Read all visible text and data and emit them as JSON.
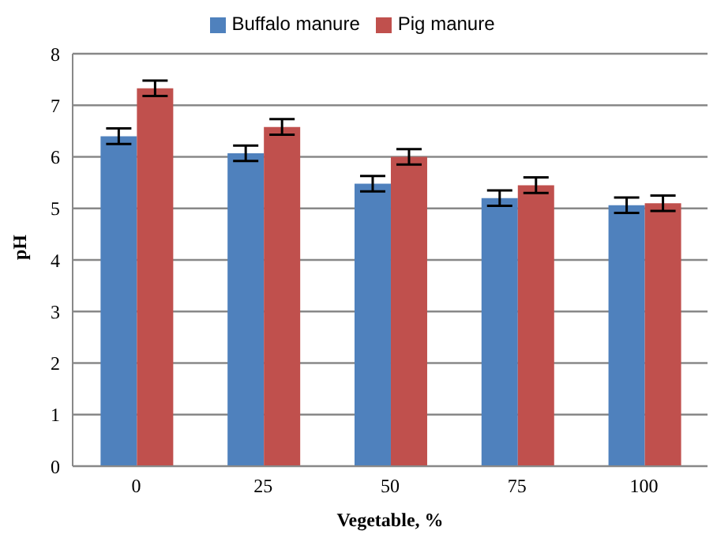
{
  "chart_data": {
    "type": "bar",
    "xlabel": "Vegetable, %",
    "ylabel": "pH",
    "categories": [
      "0",
      "25",
      "50",
      "75",
      "100"
    ],
    "series": [
      {
        "name": "Buffalo manure",
        "color": "#4f81bd",
        "values": [
          6.4,
          6.07,
          5.48,
          5.2,
          5.06
        ],
        "errors": [
          0.15,
          0.15,
          0.15,
          0.15,
          0.15
        ]
      },
      {
        "name": "Pig manure",
        "color": "#c0504d",
        "values": [
          7.33,
          6.58,
          6.0,
          5.45,
          5.1
        ],
        "errors": [
          0.15,
          0.15,
          0.15,
          0.15,
          0.15
        ]
      }
    ],
    "ylim": [
      0,
      8
    ],
    "yticks": [
      0,
      1,
      2,
      3,
      4,
      5,
      6,
      7,
      8
    ],
    "grid": "y",
    "legend": "top"
  }
}
